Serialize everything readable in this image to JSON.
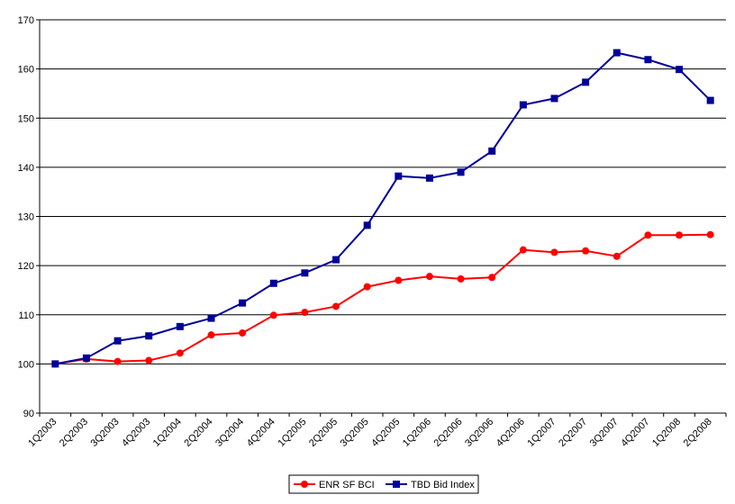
{
  "chart_data": {
    "type": "line",
    "title": "",
    "xlabel": "",
    "ylabel": "",
    "ylim": [
      90,
      170
    ],
    "yticks": [
      90,
      100,
      110,
      120,
      130,
      140,
      150,
      160,
      170
    ],
    "grid": true,
    "legend_position": "bottom-right",
    "categories": [
      "1Q2003",
      "2Q2003",
      "3Q2003",
      "4Q2003",
      "1Q2004",
      "2Q2004",
      "3Q2004",
      "4Q2004",
      "1Q2005",
      "2Q2005",
      "3Q2005",
      "4Q2005",
      "1Q2006",
      "2Q2006",
      "3Q2006",
      "4Q2006",
      "1Q2007",
      "2Q2007",
      "3Q2007",
      "4Q2007",
      "1Q2008",
      "2Q2008"
    ],
    "series": [
      {
        "name": "ENR SF BCI",
        "color": "#ff0000",
        "marker": "circle",
        "values": [
          100,
          101,
          100.5,
          100.7,
          102.2,
          105.9,
          106.3,
          109.9,
          110.5,
          111.7,
          115.7,
          117,
          117.8,
          117.3,
          117.6,
          123.2,
          122.7,
          123,
          121.9,
          126.2,
          126.2,
          126.3
        ]
      },
      {
        "name": "TBD Bid Index",
        "color": "#000099",
        "marker": "square",
        "values": [
          100,
          101.2,
          104.7,
          105.7,
          107.6,
          109.3,
          112.4,
          116.4,
          118.5,
          121.2,
          128.2,
          138.2,
          137.8,
          139,
          143.3,
          152.7,
          154,
          157.3,
          163.3,
          161.9,
          159.9,
          153.6
        ]
      }
    ]
  }
}
